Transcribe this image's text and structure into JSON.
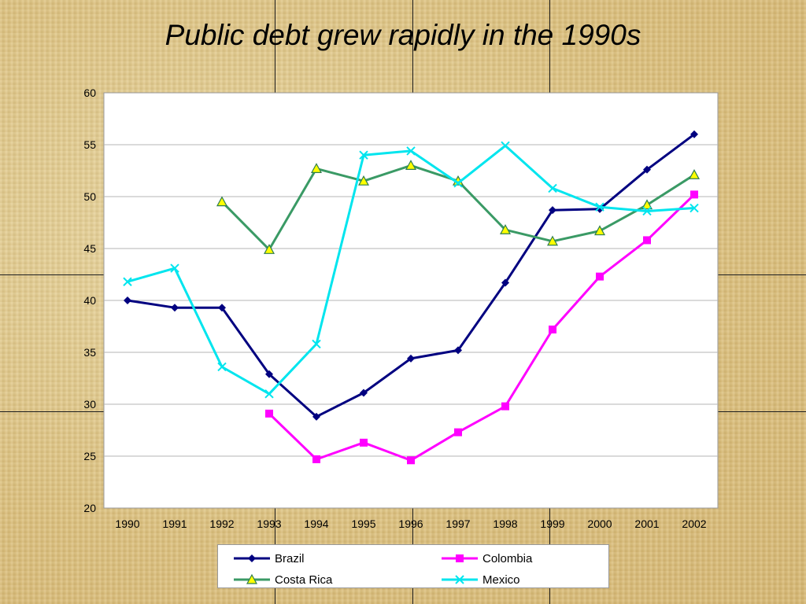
{
  "title": "Public debt grew rapidly in the 1990s",
  "chart_data": {
    "type": "line",
    "title": "Public debt grew rapidly in the 1990s",
    "xlabel": "",
    "ylabel": "",
    "x": [
      "1990",
      "1991",
      "1992",
      "1993",
      "1994",
      "1995",
      "1996",
      "1997",
      "1998",
      "1999",
      "2000",
      "2001",
      "2002"
    ],
    "ylim": [
      20,
      60
    ],
    "yticks": [
      20,
      25,
      30,
      35,
      40,
      45,
      50,
      55,
      60
    ],
    "grid": true,
    "legend": "bottom",
    "series": [
      {
        "name": "Brazil",
        "color": "#000080",
        "marker": "diamond",
        "values": [
          40.0,
          39.3,
          39.3,
          32.9,
          28.8,
          31.1,
          34.4,
          35.2,
          41.7,
          48.7,
          48.8,
          52.6,
          56.0
        ]
      },
      {
        "name": "Colombia",
        "color": "#ff00ff",
        "marker": "square",
        "values": [
          null,
          null,
          null,
          29.1,
          24.7,
          26.3,
          24.6,
          27.3,
          29.8,
          37.2,
          42.3,
          45.8,
          50.2
        ]
      },
      {
        "name": "Costa Rica",
        "color": "#3a9a65",
        "marker": "triangle",
        "values": [
          null,
          null,
          49.5,
          44.9,
          52.7,
          51.5,
          53.0,
          51.5,
          46.8,
          45.7,
          46.7,
          49.2,
          52.1
        ]
      },
      {
        "name": "Mexico",
        "color": "#00e5ee",
        "marker": "x",
        "values": [
          41.8,
          43.1,
          33.6,
          31.0,
          35.8,
          54.0,
          54.4,
          51.3,
          54.9,
          50.8,
          49.0,
          48.6,
          48.9
        ]
      }
    ]
  }
}
